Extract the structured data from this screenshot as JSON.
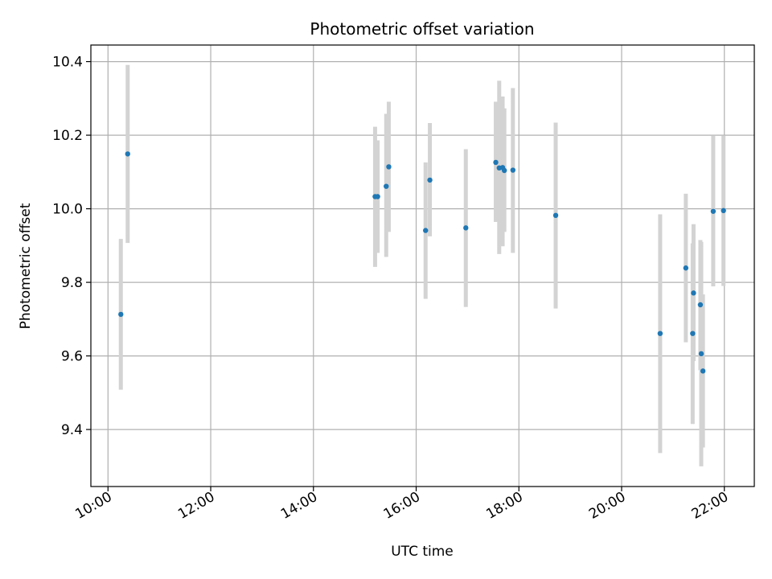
{
  "chart_data": {
    "type": "scatter",
    "title": "Photometric offset variation",
    "xlabel": "UTC time",
    "ylabel": "Photometric offset",
    "x_ticks": [
      "10:00",
      "12:00",
      "14:00",
      "16:00",
      "18:00",
      "20:00",
      "22:00"
    ],
    "x_tick_hours": [
      10,
      12,
      14,
      16,
      18,
      20,
      22
    ],
    "y_ticks": [
      "9.4",
      "9.6",
      "9.8",
      "10.0",
      "10.2",
      "10.4"
    ],
    "y_tick_values": [
      9.4,
      9.6,
      9.8,
      10.0,
      10.2,
      10.4
    ],
    "xlim": [
      "09:40",
      "22:35"
    ],
    "ylim": [
      9.245,
      10.445
    ],
    "grid": true,
    "marker_color": "#1f77b4",
    "errorbar_color": "#d3d3d3",
    "series": [
      {
        "points": [
          {
            "x": "10:15",
            "y": 9.713,
            "ylo": 9.508,
            "yhi": 9.918
          },
          {
            "x": "10:23",
            "y": 10.149,
            "ylo": 9.907,
            "yhi": 10.391
          },
          {
            "x": "15:12",
            "y": 10.033,
            "ylo": 9.842,
            "yhi": 10.223
          },
          {
            "x": "15:15",
            "y": 10.033,
            "ylo": 9.88,
            "yhi": 10.186
          },
          {
            "x": "15:25",
            "y": 10.061,
            "ylo": 9.869,
            "yhi": 10.258
          },
          {
            "x": "15:28",
            "y": 10.114,
            "ylo": 9.937,
            "yhi": 10.291
          },
          {
            "x": "16:11",
            "y": 9.941,
            "ylo": 9.755,
            "yhi": 10.126
          },
          {
            "x": "16:16",
            "y": 10.078,
            "ylo": 9.925,
            "yhi": 10.233
          },
          {
            "x": "16:58",
            "y": 9.948,
            "ylo": 9.733,
            "yhi": 10.162
          },
          {
            "x": "17:33",
            "y": 10.126,
            "ylo": 9.964,
            "yhi": 10.291
          },
          {
            "x": "17:37",
            "y": 10.111,
            "ylo": 9.877,
            "yhi": 10.348
          },
          {
            "x": "17:41",
            "y": 10.112,
            "ylo": 9.898,
            "yhi": 10.305
          },
          {
            "x": "17:43",
            "y": 10.104,
            "ylo": 9.937,
            "yhi": 10.273
          },
          {
            "x": "17:53",
            "y": 10.105,
            "ylo": 9.88,
            "yhi": 10.328
          },
          {
            "x": "18:43",
            "y": 9.982,
            "ylo": 9.729,
            "yhi": 10.234
          },
          {
            "x": "20:45",
            "y": 9.661,
            "ylo": 9.336,
            "yhi": 9.985
          },
          {
            "x": "21:15",
            "y": 9.839,
            "ylo": 9.637,
            "yhi": 10.041
          },
          {
            "x": "21:23",
            "y": 9.661,
            "ylo": 9.415,
            "yhi": 9.906
          },
          {
            "x": "21:24",
            "y": 9.771,
            "ylo": 9.586,
            "yhi": 9.958
          },
          {
            "x": "21:32",
            "y": 9.739,
            "ylo": 9.561,
            "yhi": 9.915
          },
          {
            "x": "21:33",
            "y": 9.606,
            "ylo": 9.3,
            "yhi": 9.91
          },
          {
            "x": "21:35",
            "y": 9.559,
            "ylo": 9.351,
            "yhi": 9.767
          },
          {
            "x": "21:47",
            "y": 9.993,
            "ylo": 9.789,
            "yhi": 10.198
          },
          {
            "x": "21:59",
            "y": 9.995,
            "ylo": 9.79,
            "yhi": 10.199
          }
        ]
      }
    ]
  }
}
